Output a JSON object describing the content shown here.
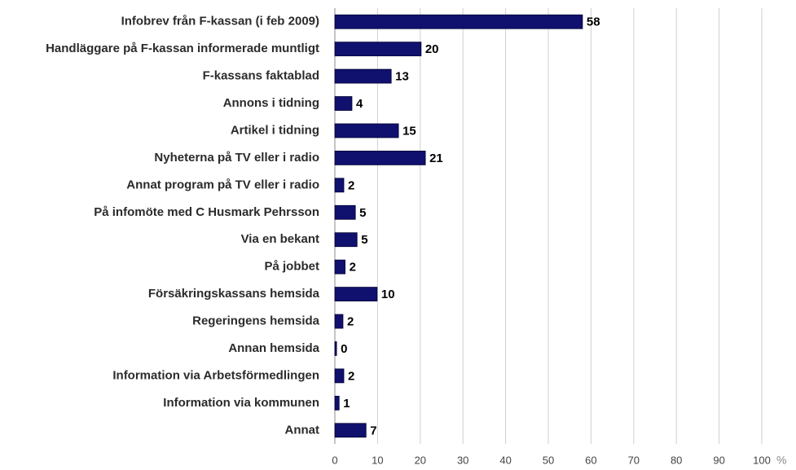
{
  "chart_data": {
    "type": "bar",
    "orientation": "horizontal",
    "categories": [
      "Infobrev från F-kassan (i feb 2009)",
      "Handläggare på F-kassan informerade muntligt",
      "F-kassans faktablad",
      "Annons i tidning",
      "Artikel i tidning",
      "Nyheterna på TV eller i radio",
      "Annat program på TV eller i radio",
      "På infomöte med C Husmark Pehrsson",
      "Via en bekant",
      "På jobbet",
      "Försäkringskassans hemsida",
      "Regeringens hemsida",
      "Annan hemsida",
      "Information via Arbetsförmedlingen",
      "Information via kommunen",
      "Annat"
    ],
    "values": [
      58,
      20.2,
      13.2,
      4,
      14.9,
      21.2,
      2.1,
      4.8,
      5.2,
      2.4,
      9.9,
      1.9,
      0.4,
      2.1,
      1,
      7.3
    ],
    "value_labels": [
      "58",
      "20",
      "13",
      "4",
      "15",
      "21",
      "2",
      "5",
      "5",
      "2",
      "10",
      "2",
      "0",
      "2",
      "1",
      "7"
    ],
    "color": "#10106e",
    "xlim": [
      0,
      100
    ],
    "xticks": [
      0,
      10,
      20,
      30,
      40,
      50,
      60,
      70,
      80,
      90,
      100
    ],
    "xlabel": "%",
    "grid": true
  }
}
